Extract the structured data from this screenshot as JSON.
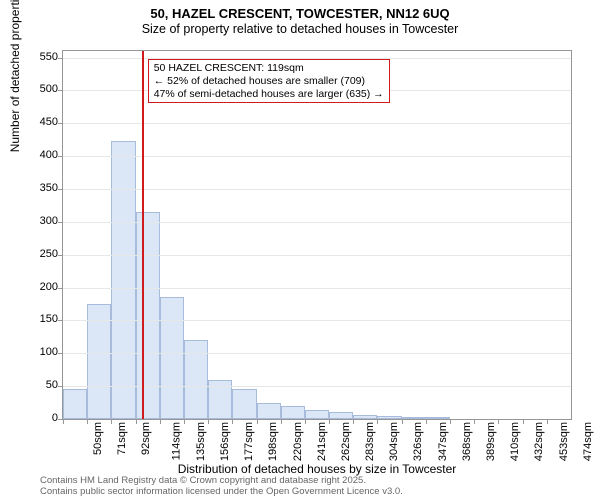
{
  "title": "50, HAZEL CRESCENT, TOWCESTER, NN12 6UQ",
  "subtitle": "Size of property relative to detached houses in Towcester",
  "ylabel": "Number of detached properties",
  "xlabel": "Distribution of detached houses by size in Towcester",
  "footer_line1": "Contains HM Land Registry data © Crown copyright and database right 2025.",
  "footer_line2": "Contains public sector information licensed under the Open Government Licence v3.0.",
  "annotation": {
    "line1": "50 HAZEL CRESCENT: 119sqm",
    "line2": "← 52% of detached houses are smaller (709)",
    "line3": "47% of semi-detached houses are larger (635) →"
  },
  "chart": {
    "type": "histogram",
    "background_color": "#ffffff",
    "grid_color": "#e7e7e7",
    "axis_color": "#969696",
    "bar_fill": "#dbe6f6",
    "bar_border": "#a9bbda",
    "vline_color": "#cf1b1b",
    "anno_border": "#cf1b1b",
    "ylim": [
      0,
      560
    ],
    "ytick_step": 50,
    "yticks": [
      0,
      50,
      100,
      150,
      200,
      250,
      300,
      350,
      400,
      450,
      500,
      550
    ],
    "x_start": 50,
    "x_step": 21.2,
    "x_bins": 21,
    "xtick_labels": [
      "50sqm",
      "71sqm",
      "92sqm",
      "114sqm",
      "135sqm",
      "156sqm",
      "177sqm",
      "198sqm",
      "220sqm",
      "241sqm",
      "262sqm",
      "283sqm",
      "304sqm",
      "326sqm",
      "347sqm",
      "368sqm",
      "389sqm",
      "410sqm",
      "432sqm",
      "453sqm",
      "474sqm"
    ],
    "values": [
      45,
      175,
      423,
      315,
      185,
      120,
      60,
      45,
      25,
      20,
      13,
      10,
      6,
      4,
      2,
      1,
      0,
      0,
      0,
      0,
      0
    ],
    "marker_sqm": 119,
    "title_fontsize": 13,
    "subtitle_fontsize": 12.5,
    "label_fontsize": 12,
    "tick_fontsize": 11,
    "anno_fontsize": 10.5,
    "footer_fontsize": 9.5
  }
}
